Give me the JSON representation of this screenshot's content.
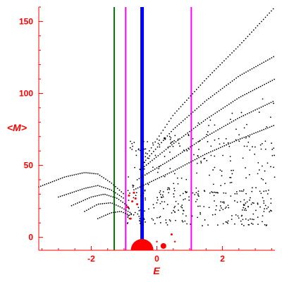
{
  "chart_data": {
    "type": "scatter",
    "xlabel": "E",
    "ylabel": "<M>",
    "xlim": [
      -3.6,
      3.6
    ],
    "ylim": [
      -9,
      160
    ],
    "xticks": [
      -2,
      0,
      2
    ],
    "yticks": [
      0,
      50,
      100,
      150
    ],
    "axis_color": "#ff0000",
    "vertical_lines": [
      {
        "x": -1.3,
        "color": "#008000"
      },
      {
        "x": -0.95,
        "color": "#ff00ff"
      },
      {
        "x": -0.45,
        "color": "#0000ff"
      },
      {
        "x": 1.05,
        "color": "#ff00ff"
      }
    ],
    "curves": [
      {
        "color": "#000000",
        "points": [
          [
            -0.35,
            56
          ],
          [
            0.5,
            85
          ],
          [
            1.5,
            110
          ],
          [
            2.5,
            133
          ],
          [
            3.6,
            160
          ]
        ]
      },
      {
        "color": "#000000",
        "points": [
          [
            -0.4,
            52
          ],
          [
            0.5,
            75
          ],
          [
            1.5,
            95
          ],
          [
            2.5,
            112
          ],
          [
            3.6,
            126
          ]
        ]
      },
      {
        "color": "#000000",
        "points": [
          [
            -0.5,
            47
          ],
          [
            0.5,
            65
          ],
          [
            1.5,
            82
          ],
          [
            2.5,
            97
          ],
          [
            3.6,
            110
          ]
        ]
      },
      {
        "color": "#000000",
        "points": [
          [
            -0.6,
            40
          ],
          [
            0.5,
            55
          ],
          [
            1.5,
            70
          ],
          [
            2.5,
            83
          ],
          [
            3.6,
            95
          ]
        ]
      },
      {
        "color": "#000000",
        "points": [
          [
            -0.7,
            33
          ],
          [
            0.5,
            46
          ],
          [
            1.5,
            58
          ],
          [
            2.5,
            68
          ],
          [
            3.6,
            78
          ]
        ]
      },
      {
        "color": "#000000",
        "points": [
          [
            -3.6,
            35
          ],
          [
            -2.8,
            42
          ],
          [
            -2.2,
            45
          ],
          [
            -1.8,
            44
          ],
          [
            -1.4,
            38
          ],
          [
            -1.0,
            30
          ]
        ]
      },
      {
        "color": "#000000",
        "points": [
          [
            -3.0,
            28
          ],
          [
            -2.2,
            34
          ],
          [
            -1.8,
            36
          ],
          [
            -1.4,
            33
          ],
          [
            -1.0,
            27
          ]
        ]
      },
      {
        "color": "#000000",
        "points": [
          [
            -2.6,
            22
          ],
          [
            -2.0,
            28
          ],
          [
            -1.6,
            30
          ],
          [
            -1.2,
            27
          ],
          [
            -0.9,
            22
          ]
        ]
      },
      {
        "color": "#000000",
        "points": [
          [
            -2.2,
            18
          ],
          [
            -1.8,
            23
          ],
          [
            -1.4,
            24
          ],
          [
            -1.1,
            21
          ],
          [
            -0.8,
            17
          ]
        ]
      },
      {
        "color": "#000000",
        "points": [
          [
            -1.8,
            13
          ],
          [
            -1.4,
            17
          ],
          [
            -1.1,
            18
          ],
          [
            -0.8,
            15
          ]
        ]
      }
    ],
    "red_markers": [
      {
        "x": -0.45,
        "y": -8,
        "size": 16
      },
      {
        "x": 0.2,
        "y": -6,
        "size": 4
      },
      {
        "x": 0.0,
        "y": -3,
        "size": 1.2
      },
      {
        "x": 0.55,
        "y": -3,
        "size": 1.2
      },
      {
        "x": -0.8,
        "y": 13,
        "size": 1.5
      },
      {
        "x": -0.9,
        "y": 21,
        "size": 1.5
      },
      {
        "x": -0.6,
        "y": 23,
        "size": 1.5
      },
      {
        "x": -0.75,
        "y": 25,
        "size": 1.5
      },
      {
        "x": -0.65,
        "y": 27,
        "size": 1.5
      },
      {
        "x": -0.85,
        "y": 29,
        "size": 1.5
      },
      {
        "x": -0.7,
        "y": 31,
        "size": 1.5
      },
      {
        "x": 0.45,
        "y": 2,
        "size": 1.5
      }
    ]
  }
}
